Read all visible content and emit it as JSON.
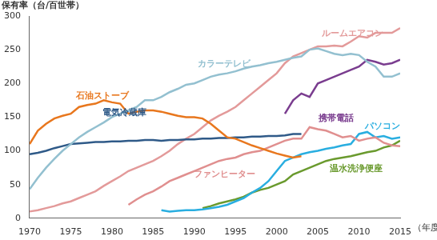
{
  "chart_data": {
    "type": "line",
    "y_label": "保有率（台/百世帯）",
    "x_label": "（年度）",
    "x": [
      1970,
      1971,
      1972,
      1973,
      1974,
      1975,
      1976,
      1977,
      1978,
      1979,
      1980,
      1981,
      1982,
      1983,
      1984,
      1985,
      1986,
      1987,
      1988,
      1989,
      1990,
      1991,
      1992,
      1993,
      1994,
      1995,
      1996,
      1997,
      1998,
      1999,
      2000,
      2001,
      2002,
      2003,
      2004,
      2005,
      2006,
      2007,
      2008,
      2009,
      2010,
      2011,
      2012,
      2013,
      2014,
      2015
    ],
    "xlim": [
      1970,
      2015
    ],
    "xticks": [
      1970,
      1975,
      1980,
      1985,
      1990,
      1995,
      2000,
      2005,
      2010,
      2015
    ],
    "ylim": [
      0,
      300
    ],
    "yticks": [
      0,
      50,
      100,
      150,
      200,
      250,
      300
    ],
    "grid": false,
    "series": [
      {
        "name": "カラーテレビ",
        "color": "#93c0d0",
        "values": [
          43,
          60,
          75,
          88,
          100,
          110,
          120,
          128,
          135,
          142,
          150,
          155,
          160,
          165,
          175,
          175,
          180,
          187,
          192,
          198,
          200,
          205,
          210,
          213,
          215,
          218,
          222,
          225,
          227,
          230,
          232,
          235,
          238,
          240,
          250,
          252,
          248,
          244,
          242,
          244,
          242,
          232,
          225,
          210,
          210,
          215
        ]
      },
      {
        "name": "石油ストーブ",
        "color": "#e8771e",
        "values": [
          110,
          130,
          140,
          148,
          152,
          155,
          165,
          168,
          170,
          175,
          172,
          170,
          155,
          158,
          160,
          160,
          158,
          155,
          152,
          150,
          150,
          148,
          140,
          130,
          120,
          118,
          113,
          108,
          104,
          100,
          96,
          93,
          90,
          92,
          null,
          null,
          null,
          null,
          null,
          null,
          null,
          null,
          null,
          null,
          null,
          null
        ]
      },
      {
        "name": "電気冷蔵庫",
        "color": "#2f5a88",
        "values": [
          95,
          97,
          100,
          104,
          107,
          110,
          111,
          112,
          113,
          113,
          114,
          114,
          115,
          115,
          116,
          116,
          115,
          116,
          116,
          117,
          117,
          118,
          118,
          119,
          119,
          120,
          120,
          121,
          121,
          122,
          122,
          123,
          125,
          125,
          null,
          null,
          null,
          null,
          null,
          null,
          null,
          null,
          null,
          null,
          null,
          null
        ]
      },
      {
        "name": "ルームエアコン",
        "color": "#e39a9a",
        "values": [
          10,
          12,
          15,
          18,
          22,
          25,
          30,
          35,
          40,
          48,
          55,
          62,
          70,
          75,
          80,
          85,
          92,
          100,
          110,
          118,
          125,
          135,
          145,
          152,
          158,
          165,
          175,
          185,
          195,
          205,
          215,
          230,
          240,
          245,
          250,
          255,
          255,
          256,
          255,
          262,
          270,
          268,
          275,
          275,
          275,
          282
        ]
      },
      {
        "name": "ファンヒーター",
        "color": "#e08f8f",
        "values": [
          null,
          null,
          null,
          null,
          null,
          null,
          null,
          null,
          null,
          null,
          null,
          null,
          20,
          28,
          35,
          40,
          47,
          55,
          60,
          65,
          70,
          75,
          80,
          85,
          88,
          90,
          95,
          98,
          100,
          105,
          110,
          115,
          118,
          118,
          135,
          132,
          130,
          125,
          120,
          122,
          115,
          118,
          120,
          112,
          108,
          107
        ]
      },
      {
        "name": "携帯電話",
        "color": "#7a3d8f",
        "values": [
          null,
          null,
          null,
          null,
          null,
          null,
          null,
          null,
          null,
          null,
          null,
          null,
          null,
          null,
          null,
          null,
          null,
          null,
          null,
          null,
          null,
          null,
          null,
          null,
          null,
          null,
          null,
          null,
          null,
          null,
          null,
          155,
          175,
          185,
          180,
          200,
          205,
          210,
          215,
          220,
          225,
          235,
          232,
          228,
          230,
          235
        ]
      },
      {
        "name": "パソコン",
        "color": "#29aee0",
        "values": [
          null,
          null,
          null,
          null,
          null,
          null,
          null,
          null,
          null,
          null,
          null,
          null,
          null,
          null,
          null,
          null,
          12,
          10,
          11,
          12,
          12,
          13,
          15,
          17,
          20,
          25,
          30,
          38,
          45,
          55,
          70,
          85,
          90,
          95,
          98,
          100,
          103,
          105,
          108,
          110,
          125,
          128,
          120,
          122,
          118,
          120
        ]
      },
      {
        "name": "温水洗浄便座",
        "color": "#6a9a2e",
        "values": [
          null,
          null,
          null,
          null,
          null,
          null,
          null,
          null,
          null,
          null,
          null,
          null,
          null,
          null,
          null,
          null,
          null,
          null,
          null,
          null,
          null,
          15,
          18,
          22,
          25,
          28,
          32,
          38,
          42,
          45,
          50,
          55,
          65,
          70,
          75,
          80,
          85,
          88,
          90,
          92,
          95,
          98,
          100,
          105,
          108,
          115
        ]
      }
    ]
  }
}
